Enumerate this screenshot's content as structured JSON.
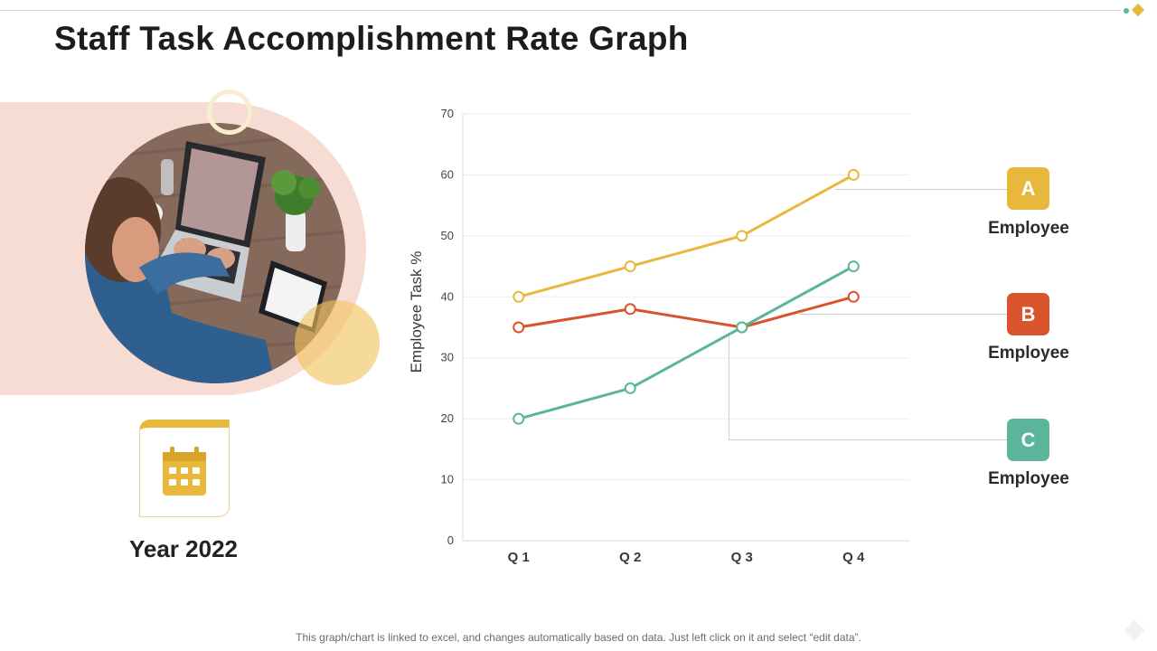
{
  "title": "Staff Task Accomplishment Rate Graph",
  "year_label": "Year 2022",
  "footnote": "This graph/chart is linked to excel, and changes automatically based on data. Just left click on it and select “edit data”.",
  "colors": {
    "series_a": "#e8b83c",
    "series_b": "#d9532c",
    "series_c": "#5ab59b",
    "panel_pink": "#f7dcd3",
    "accent_gold": "#e8b83c"
  },
  "icons": {
    "calendar": "calendar-icon",
    "photo": "person-at-laptop-photo"
  },
  "legend": [
    {
      "letter": "A",
      "label": "Employee",
      "color": "#e8b83c"
    },
    {
      "letter": "B",
      "label": "Employee",
      "color": "#d9532c"
    },
    {
      "letter": "C",
      "label": "Employee",
      "color": "#5ab59b"
    }
  ],
  "chart_data": {
    "type": "line",
    "title": "",
    "xlabel": "",
    "ylabel": "Employee Task %",
    "categories": [
      "Q 1",
      "Q 2",
      "Q 3",
      "Q 4"
    ],
    "ylim": [
      0,
      70
    ],
    "yticks": [
      0,
      10,
      20,
      30,
      40,
      50,
      60,
      70
    ],
    "grid": true,
    "legend_position": "right",
    "series": [
      {
        "values": [
          40,
          45,
          50,
          60
        ],
        "color": "#e8b83c"
      },
      {
        "values": [
          35,
          38,
          35,
          40
        ],
        "color": "#d9532c"
      },
      {
        "values": [
          20,
          25,
          35,
          45
        ],
        "color": "#5ab59b"
      }
    ]
  }
}
